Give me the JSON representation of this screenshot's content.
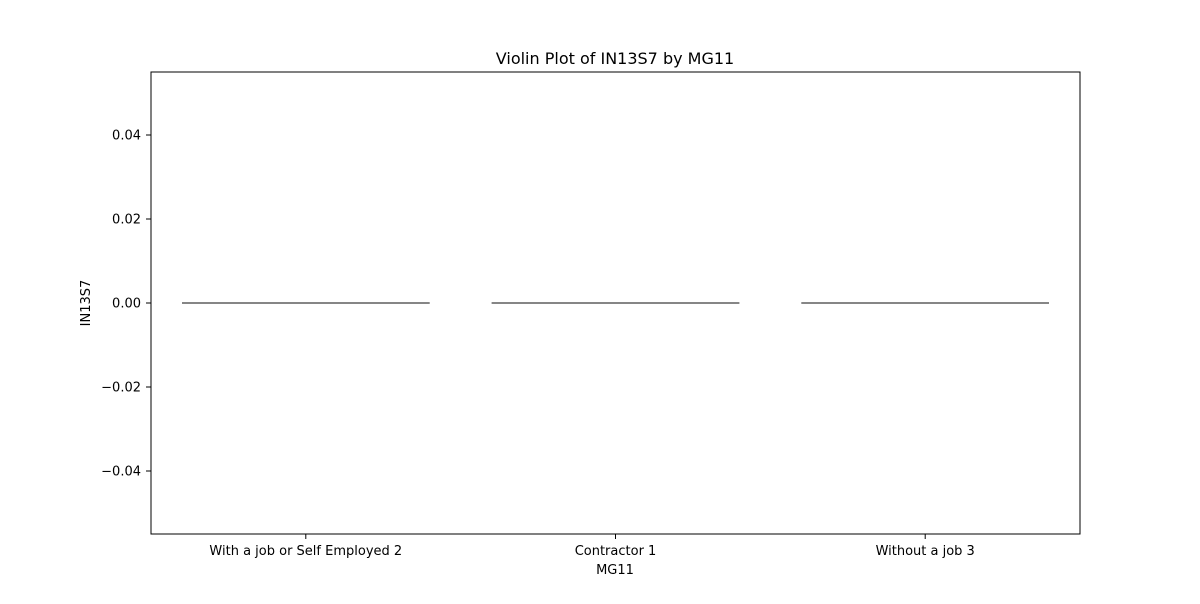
{
  "chart_data": {
    "type": "violin",
    "title": "Violin Plot of IN13S7 by MG11",
    "xlabel": "MG11",
    "ylabel": "IN13S7",
    "categories": [
      "With a job or Self Employed 2",
      "Contractor 1",
      "Without a job 3"
    ],
    "values": [
      0.0,
      0.0,
      0.0
    ],
    "ylim": [
      -0.055,
      0.055
    ],
    "yticks": [
      -0.04,
      -0.02,
      0.0,
      0.02,
      0.04
    ],
    "ytick_labels": [
      "−0.04",
      "−0.02",
      "0.00",
      "0.02",
      "0.04"
    ],
    "grid": false,
    "legend": "none",
    "colors": {
      "line": "#3d3d3d",
      "axis": "#000000",
      "background": "#ffffff"
    }
  }
}
